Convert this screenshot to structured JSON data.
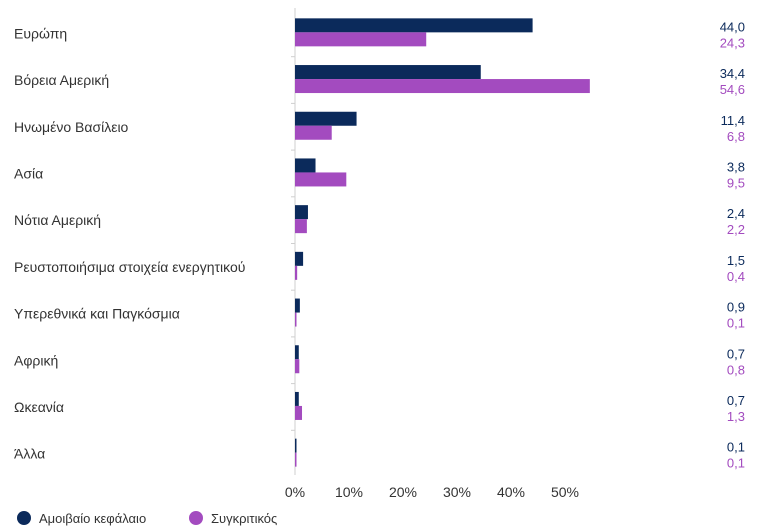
{
  "chart_data": {
    "type": "bar",
    "orientation": "horizontal",
    "categories": [
      "Ευρώπη",
      "Βόρεια Αμερική",
      "Ηνωμένο Βασίλειο",
      "Ασία",
      "Νότια Αμερική",
      "Ρευστοποιήσιμα στοιχεία ενεργητικού",
      "Υπερεθνικά και Παγκόσμια",
      "Αφρική",
      "Ωκεανία",
      "Άλλα"
    ],
    "series": [
      {
        "name": "Αμοιβαίο κεφάλαιο",
        "color": "#0b2a5b",
        "values": [
          44.0,
          34.4,
          11.4,
          3.8,
          2.4,
          1.5,
          0.9,
          0.7,
          0.7,
          0.1
        ],
        "labels": [
          "44,0",
          "34,4",
          "11,4",
          "3,8",
          "2,4",
          "1,5",
          "0,9",
          "0,7",
          "0,7",
          "0,1"
        ]
      },
      {
        "name": "Συγκριτικός",
        "color": "#a34bbf",
        "values": [
          24.3,
          54.6,
          6.8,
          9.5,
          2.2,
          0.4,
          0.1,
          0.8,
          1.3,
          0.1
        ],
        "labels": [
          "24,3",
          "54,6",
          "6,8",
          "9,5",
          "2,2",
          "0,4",
          "0,1",
          "0,8",
          "1,3",
          "0,1"
        ]
      }
    ],
    "xticks": [
      "0%",
      "10%",
      "20%",
      "30%",
      "40%",
      "50%"
    ],
    "xlim": [
      0,
      60
    ],
    "grid": false,
    "legend_position": "bottom-left"
  }
}
